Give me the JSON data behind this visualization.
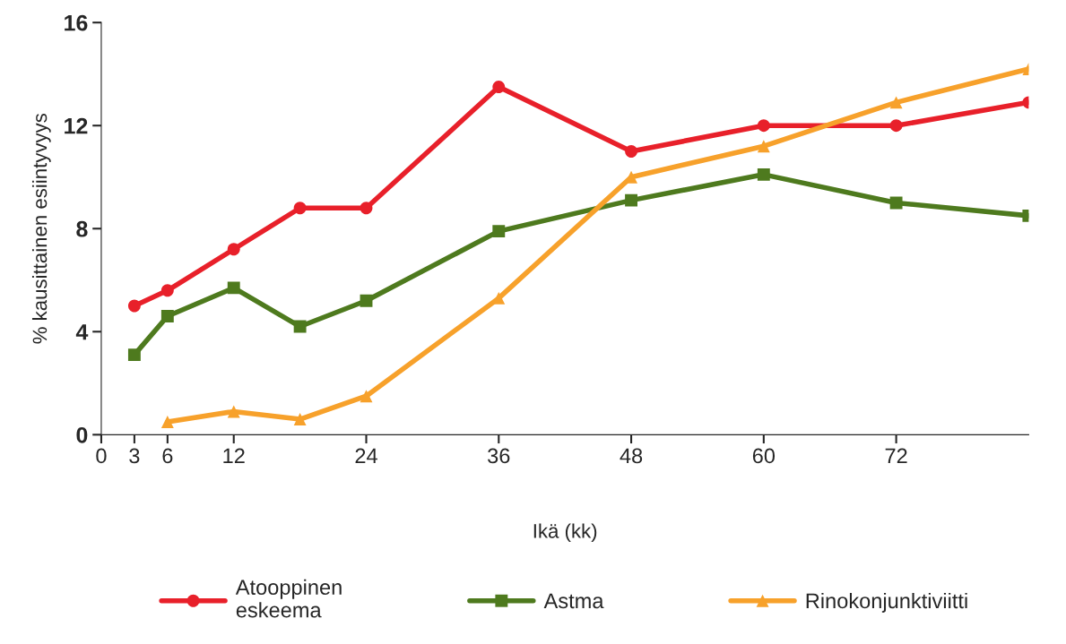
{
  "chart_data": {
    "type": "line",
    "xlabel": "Ikä (kk)",
    "ylabel": "% kausittainen esiintyvyys",
    "xlim": [
      0,
      84
    ],
    "xticks": [
      0,
      3,
      6,
      12,
      24,
      36,
      48,
      60,
      72
    ],
    "ylim": [
      0,
      16
    ],
    "yticks": [
      0,
      4,
      8,
      12,
      16
    ],
    "grid": false,
    "legend": "bottom",
    "series": [
      {
        "name": "Atooppinen\neskeema",
        "color": "#e8202a",
        "marker": "circle",
        "x": [
          3,
          6,
          12,
          18,
          24,
          36,
          48,
          60,
          72,
          84
        ],
        "values": [
          5.0,
          5.6,
          7.2,
          8.8,
          8.8,
          13.5,
          11.0,
          12.0,
          12.0,
          12.9
        ]
      },
      {
        "name": "Astma",
        "color": "#4e7a1e",
        "marker": "square",
        "x": [
          3,
          6,
          12,
          18,
          24,
          36,
          48,
          60,
          72,
          84
        ],
        "values": [
          3.1,
          4.6,
          5.7,
          4.2,
          5.2,
          7.9,
          9.1,
          10.1,
          9.0,
          8.5
        ]
      },
      {
        "name": "Rinokonjunktiviitti",
        "color": "#f7a12b",
        "marker": "triangle",
        "x": [
          6,
          12,
          18,
          24,
          36,
          48,
          60,
          72,
          84
        ],
        "values": [
          0.5,
          0.9,
          0.6,
          1.5,
          5.3,
          10.0,
          11.2,
          12.9,
          14.2
        ]
      }
    ]
  }
}
